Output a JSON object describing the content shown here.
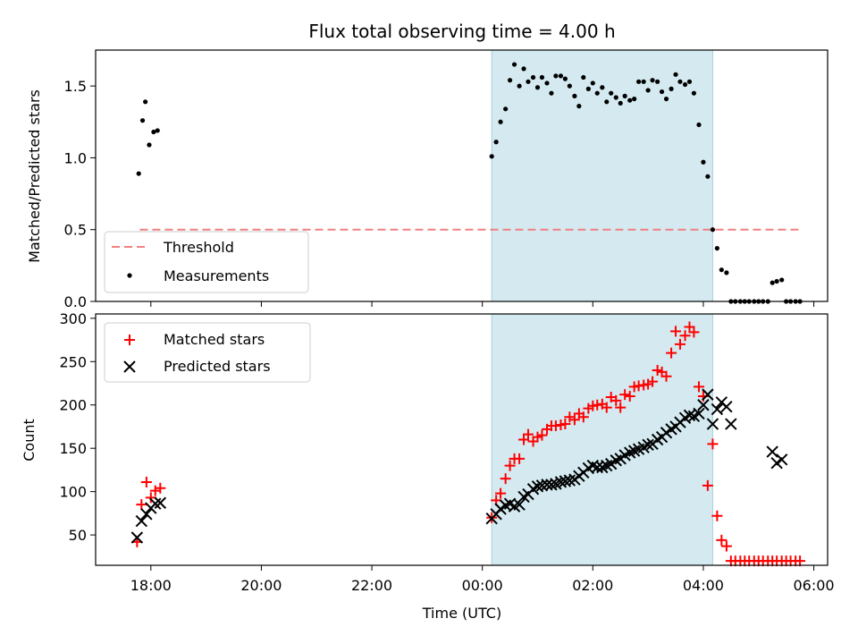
{
  "chart_data": [
    {
      "type": "scatter",
      "title": "Flux total observing time = 4.00 h",
      "xlabel": "",
      "ylabel": "Matched/Predicted stars",
      "ylim": [
        0,
        1.75
      ],
      "yticks": [
        0.0,
        0.5,
        1.0,
        1.5
      ],
      "ytick_labels": [
        "0.0",
        "0.5",
        "1.0",
        "1.5"
      ],
      "xlim_hours": [
        17.0,
        30.25
      ],
      "xticks_hours": [
        18,
        20,
        22,
        24,
        26,
        28,
        30
      ],
      "shaded_span_hours": [
        24.17,
        28.17
      ],
      "shaded_color": "#d4eaf0",
      "legend_position": "lower left",
      "threshold": {
        "name": "Threshold",
        "value": 0.5,
        "x_hours": [
          17.8,
          29.75
        ],
        "color": "#f08080"
      },
      "series": [
        {
          "name": "Measurements",
          "color": "#000000",
          "x_hours": [
            17.78,
            17.85,
            17.9,
            17.97,
            18.05,
            18.12,
            24.17,
            24.25,
            24.33,
            24.42,
            24.5,
            24.58,
            24.67,
            24.75,
            24.83,
            24.92,
            25.0,
            25.08,
            25.17,
            25.25,
            25.33,
            25.42,
            25.5,
            25.58,
            25.67,
            25.75,
            25.83,
            25.92,
            26.0,
            26.08,
            26.17,
            26.25,
            26.33,
            26.42,
            26.5,
            26.58,
            26.67,
            26.75,
            26.83,
            26.92,
            27.0,
            27.08,
            27.17,
            27.25,
            27.33,
            27.42,
            27.5,
            27.58,
            27.67,
            27.75,
            27.83,
            27.92,
            28.0,
            28.08,
            28.17,
            28.25,
            28.33,
            28.42,
            28.5,
            28.58,
            28.67,
            28.75,
            28.83,
            28.92,
            29.0,
            29.08,
            29.17,
            29.25,
            29.33,
            29.42,
            29.5,
            29.58,
            29.67,
            29.75
          ],
          "y": [
            0.89,
            1.26,
            1.39,
            1.09,
            1.18,
            1.19,
            1.01,
            1.11,
            1.25,
            1.34,
            1.54,
            1.65,
            1.5,
            1.62,
            1.53,
            1.56,
            1.49,
            1.56,
            1.52,
            1.45,
            1.57,
            1.57,
            1.55,
            1.5,
            1.43,
            1.36,
            1.56,
            1.48,
            1.52,
            1.45,
            1.49,
            1.39,
            1.45,
            1.42,
            1.38,
            1.43,
            1.4,
            1.41,
            1.53,
            1.53,
            1.47,
            1.54,
            1.53,
            1.46,
            1.41,
            1.48,
            1.58,
            1.53,
            1.51,
            1.53,
            1.45,
            1.23,
            0.97,
            0.87,
            0.5,
            0.37,
            0.22,
            0.2,
            0.0,
            0.0,
            0.0,
            0.0,
            0.0,
            0.0,
            0.0,
            0.0,
            0.0,
            0.13,
            0.14,
            0.15,
            0.0,
            0.0,
            0.0,
            0.0
          ]
        }
      ]
    },
    {
      "type": "scatter",
      "title": "",
      "xlabel": "Time (UTC)",
      "ylabel": "Count",
      "ylim": [
        15,
        305
      ],
      "yticks": [
        50,
        100,
        150,
        200,
        250,
        300
      ],
      "ytick_labels": [
        "50",
        "100",
        "150",
        "200",
        "250",
        "300"
      ],
      "xlim_hours": [
        17.0,
        30.25
      ],
      "xticks_hours": [
        18,
        20,
        22,
        24,
        26,
        28,
        30
      ],
      "xtick_labels": [
        "18:00",
        "20:00",
        "22:00",
        "00:00",
        "02:00",
        "04:00",
        "06:00"
      ],
      "shaded_span_hours": [
        24.17,
        28.17
      ],
      "shaded_color": "#d4eaf0",
      "legend_position": "upper left",
      "series": [
        {
          "name": "Matched stars",
          "marker": "plus",
          "color": "#ff0000",
          "x_hours": [
            17.75,
            17.83,
            17.92,
            18.0,
            18.08,
            18.17,
            24.17,
            24.25,
            24.33,
            24.42,
            24.5,
            24.58,
            24.67,
            24.75,
            24.83,
            24.92,
            25.0,
            25.08,
            25.17,
            25.25,
            25.33,
            25.42,
            25.5,
            25.58,
            25.67,
            25.75,
            25.83,
            25.92,
            26.0,
            26.08,
            26.17,
            26.25,
            26.33,
            26.42,
            26.5,
            26.58,
            26.67,
            26.75,
            26.83,
            26.92,
            27.0,
            27.08,
            27.17,
            27.25,
            27.33,
            27.42,
            27.5,
            27.58,
            27.67,
            27.75,
            27.83,
            27.92,
            28.0,
            28.08,
            28.17,
            28.25,
            28.33,
            28.42,
            28.5,
            28.58,
            28.67,
            28.75,
            28.83,
            28.92,
            29.0,
            29.08,
            29.17,
            29.25,
            29.33,
            29.42,
            29.5,
            29.58,
            29.67,
            29.75
          ],
          "y": [
            42,
            85,
            111,
            93,
            101,
            104,
            70,
            90,
            98,
            115,
            130,
            138,
            138,
            160,
            166,
            158,
            163,
            165,
            172,
            176,
            176,
            177,
            178,
            186,
            183,
            190,
            186,
            196,
            199,
            200,
            201,
            197,
            209,
            205,
            197,
            212,
            210,
            221,
            222,
            223,
            224,
            227,
            240,
            238,
            233,
            260,
            285,
            270,
            280,
            290,
            284,
            221,
            210,
            107,
            155,
            72,
            44,
            37,
            20,
            20,
            20,
            20,
            20,
            20,
            20,
            20,
            20,
            20,
            20,
            20,
            20,
            20,
            20,
            20
          ]
        },
        {
          "name": "Predicted stars",
          "marker": "x",
          "color": "#000000",
          "x_hours": [
            17.75,
            17.83,
            17.92,
            18.0,
            18.08,
            18.17,
            24.17,
            24.25,
            24.33,
            24.42,
            24.5,
            24.58,
            24.67,
            24.75,
            24.83,
            24.92,
            25.0,
            25.08,
            25.17,
            25.25,
            25.33,
            25.42,
            25.5,
            25.58,
            25.67,
            25.75,
            25.83,
            25.92,
            26.0,
            26.08,
            26.17,
            26.25,
            26.33,
            26.42,
            26.5,
            26.58,
            26.67,
            26.75,
            26.83,
            26.92,
            27.0,
            27.08,
            27.17,
            27.25,
            27.33,
            27.42,
            27.5,
            27.58,
            27.67,
            27.75,
            27.83,
            27.92,
            28.0,
            28.08,
            28.17,
            28.25,
            28.33,
            28.42,
            28.5,
            29.25,
            29.33,
            29.42
          ],
          "y": [
            47,
            66,
            74,
            81,
            86,
            87,
            69,
            74,
            80,
            84,
            86,
            83,
            85,
            94,
            97,
            103,
            106,
            107,
            108,
            108,
            109,
            111,
            112,
            113,
            114,
            118,
            122,
            127,
            130,
            128,
            128,
            130,
            132,
            136,
            138,
            142,
            145,
            147,
            149,
            151,
            154,
            155,
            160,
            163,
            168,
            172,
            175,
            180,
            185,
            188,
            187,
            190,
            200,
            212,
            178,
            195,
            203,
            198,
            178,
            146,
            133,
            137
          ]
        }
      ]
    }
  ]
}
